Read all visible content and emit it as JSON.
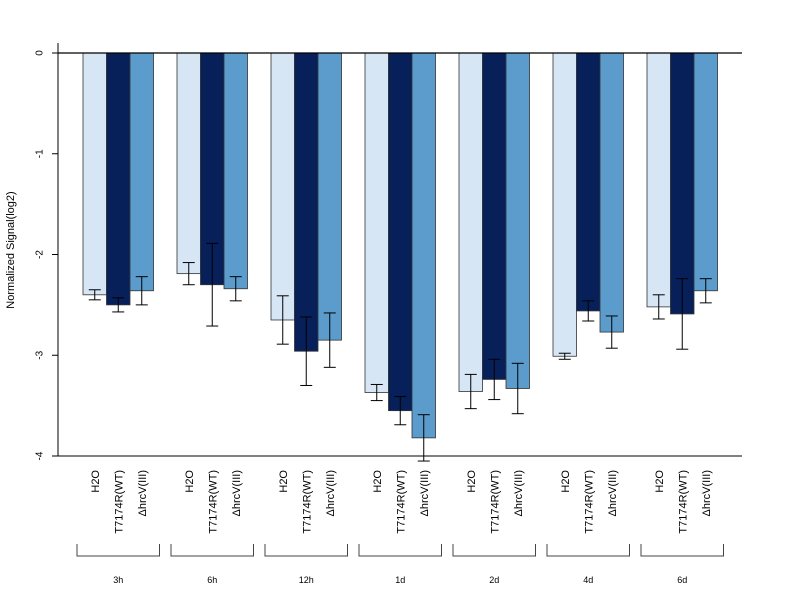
{
  "chart_data": {
    "type": "bar",
    "ylabel": "Normalized Signal(log2)",
    "ylim": [
      -4,
      0
    ],
    "yticks": [
      "0",
      "-1",
      "-2",
      "-3",
      "-4"
    ],
    "groups": [
      "3h",
      "6h",
      "12h",
      "1d",
      "2d",
      "4d",
      "6d"
    ],
    "categories": [
      "H2O",
      "T7174R(WT)",
      "ΔhrcV(III)"
    ],
    "colors": [
      "#d6e6f4",
      "#08205a",
      "#5b9ccd"
    ],
    "values": [
      [
        -2.4,
        -2.5,
        -2.36
      ],
      [
        -2.19,
        -2.3,
        -2.34
      ],
      [
        -2.65,
        -2.96,
        -2.85
      ],
      [
        -3.37,
        -3.55,
        -3.82
      ],
      [
        -3.36,
        -3.24,
        -3.33
      ],
      [
        -3.01,
        -2.56,
        -2.77
      ],
      [
        -2.52,
        -2.59,
        -2.36
      ]
    ],
    "errors": [
      [
        0.05,
        0.07,
        0.14
      ],
      [
        0.11,
        0.41,
        0.12
      ],
      [
        0.24,
        0.34,
        0.27
      ],
      [
        0.08,
        0.14,
        0.23
      ],
      [
        0.17,
        0.2,
        0.25
      ],
      [
        0.03,
        0.1,
        0.16
      ],
      [
        0.12,
        0.35,
        0.12
      ]
    ]
  }
}
